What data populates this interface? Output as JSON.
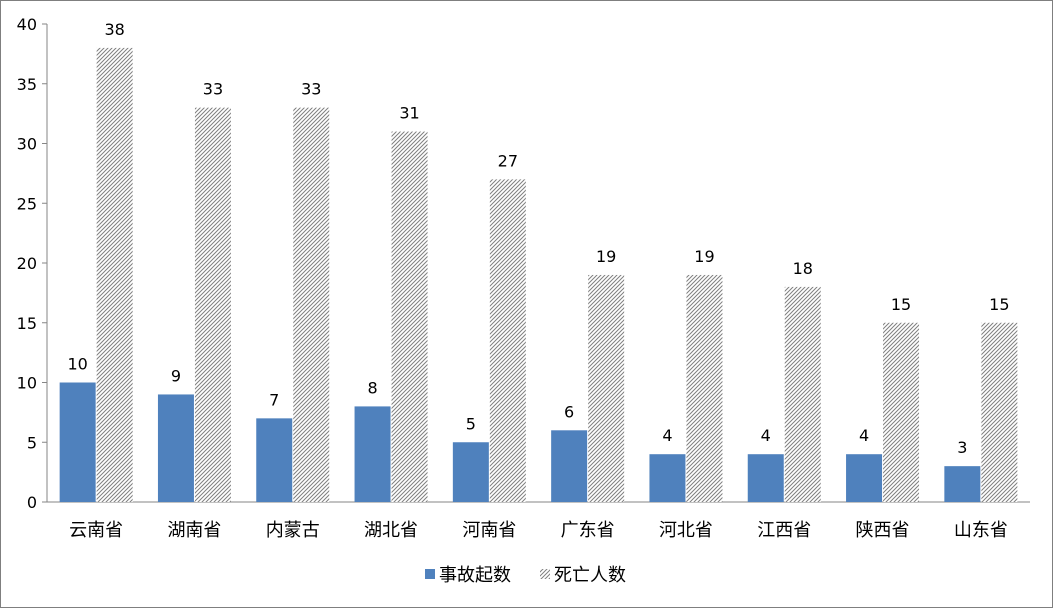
{
  "chart_data": {
    "type": "bar",
    "title": "",
    "xlabel": "",
    "ylabel": "",
    "categories": [
      "云南省",
      "湖南省",
      "内蒙古",
      "湖北省",
      "河南省",
      "广东省",
      "河北省",
      "江西省",
      "陕西省",
      "山东省"
    ],
    "series": [
      {
        "name": "事故起数",
        "values": [
          10,
          9,
          7,
          8,
          5,
          6,
          4,
          4,
          4,
          3
        ],
        "color": "#4f81bd",
        "fill": "solid"
      },
      {
        "name": "死亡人数",
        "values": [
          38,
          33,
          33,
          31,
          27,
          19,
          19,
          18,
          15,
          15
        ],
        "color": "#7f7f7f",
        "fill": "diagonal-hatch"
      }
    ],
    "ylim": [
      0,
      40
    ],
    "yticks": [
      0,
      5,
      10,
      15,
      20,
      25,
      30,
      35,
      40
    ],
    "grid": false,
    "data_labels": true,
    "legend": "bottom-center"
  }
}
